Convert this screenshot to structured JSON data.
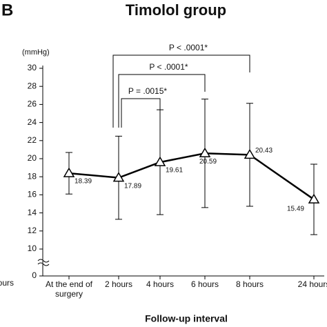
{
  "chart_data": {
    "type": "line",
    "panel_label": "B",
    "title": "Timolol group",
    "y_unit": "(mmHg)",
    "x_label": "Follow-up interval",
    "left_panel_fragment": "hours",
    "categories": [
      "At the end of surgery",
      "2 hours",
      "4 hours",
      "6 hours",
      "8 hours",
      "24 hours"
    ],
    "series": [
      {
        "color": "#000000",
        "values": [
          18.39,
          17.89,
          19.61,
          20.59,
          20.43,
          15.49
        ],
        "errors": [
          2.3,
          4.6,
          5.8,
          6.0,
          5.7,
          3.9
        ]
      }
    ],
    "ylim": [
      0,
      30
    ],
    "yticks": [
      0,
      10,
      12,
      14,
      16,
      18,
      20,
      22,
      24,
      26,
      28,
      30
    ],
    "annotations": [
      {
        "text": "P = .0015*",
        "from": 1,
        "to": 2
      },
      {
        "text": "P < .0001*",
        "from": 1,
        "to": 3
      },
      {
        "text": "P < .0001*",
        "from": 1,
        "to": 4
      }
    ]
  }
}
